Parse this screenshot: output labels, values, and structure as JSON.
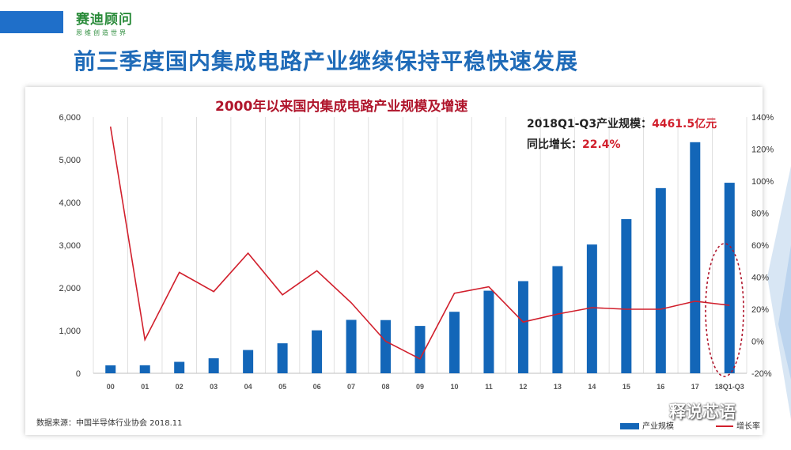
{
  "logo": {
    "name": "赛迪顾问",
    "tagline": "思维创造世界"
  },
  "slide_title": "前三季度国内集成电路产业继续保持平稳快速发展",
  "annotation": {
    "line1_label": "2018Q1-Q3产业规模：",
    "line1_value": "4461.5亿元",
    "line2_label": "同比增长：",
    "line2_value": "22.4%"
  },
  "source": "数据来源：中国半导体行业协会 2018.11",
  "watermark": "释说芯语",
  "colors": {
    "bar": "#1366b8",
    "line": "#d11f2c",
    "title_blue": "#1f6bb8",
    "chart_title": "#b0162c"
  },
  "chart_data": {
    "type": "bar",
    "title": "2000年以来国内集成电路产业规模及增速",
    "categories": [
      "00",
      "01",
      "02",
      "03",
      "04",
      "05",
      "06",
      "07",
      "08",
      "09",
      "10",
      "11",
      "12",
      "13",
      "14",
      "15",
      "16",
      "17",
      "18Q1-Q3"
    ],
    "ylim": [
      0,
      6000
    ],
    "y2lim": [
      -20,
      140
    ],
    "yticks": [
      "0",
      "1,000",
      "2,000",
      "3,000",
      "4,000",
      "5,000",
      "6,000"
    ],
    "y2ticks": [
      "-20%",
      "0%",
      "20%",
      "40%",
      "60%",
      "80%",
      "100%",
      "120%",
      "140%"
    ],
    "series": [
      {
        "name": "产业规模",
        "type": "bar",
        "axis": "left",
        "values": [
          186,
          188,
          268,
          351,
          545,
          702,
          1006,
          1251,
          1246,
          1109,
          1440,
          1934,
          2158,
          2509,
          3015,
          3610,
          4336,
          5411,
          4461.5
        ]
      },
      {
        "name": "增长率",
        "type": "line",
        "axis": "right",
        "values": [
          134,
          1,
          43,
          31,
          55,
          29,
          44,
          24,
          0,
          -11,
          30,
          34,
          12,
          17,
          21,
          20,
          20,
          25,
          22.4
        ]
      }
    ],
    "grid": true,
    "legend": "bottom-right"
  }
}
